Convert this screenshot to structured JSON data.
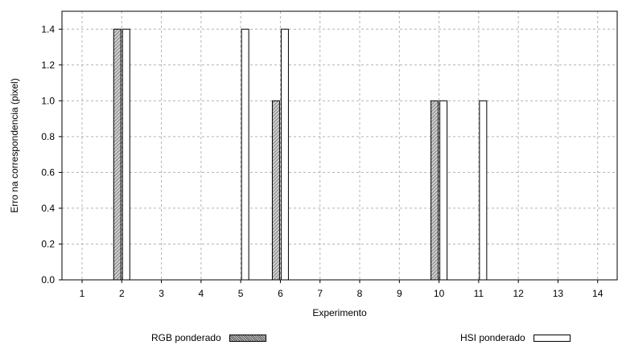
{
  "chart_data": {
    "type": "bar",
    "xlabel": "Experimento",
    "ylabel": "Erro na correspondencia (pixel)",
    "categories": [
      "1",
      "2",
      "3",
      "4",
      "5",
      "6",
      "7",
      "8",
      "9",
      "10",
      "11",
      "12",
      "13",
      "14"
    ],
    "ylim": [
      0,
      1.5
    ],
    "yticks": [
      "0.0",
      "0.2",
      "0.4",
      "0.6",
      "0.8",
      "1.0",
      "1.2",
      "1.4"
    ],
    "grid": true,
    "legend_position": "bottom",
    "series": [
      {
        "name": "RGB ponderado",
        "fill": "hatched-gray",
        "values": [
          0,
          1.4,
          0,
          0,
          0,
          1.0,
          0,
          0,
          0,
          1.0,
          0,
          0,
          0,
          0
        ]
      },
      {
        "name": "HSI ponderado",
        "fill": "#ffffff",
        "values": [
          0,
          1.4,
          0,
          0,
          1.4,
          1.4,
          0,
          0,
          0,
          1.0,
          1.0,
          0,
          0,
          0
        ]
      }
    ]
  }
}
